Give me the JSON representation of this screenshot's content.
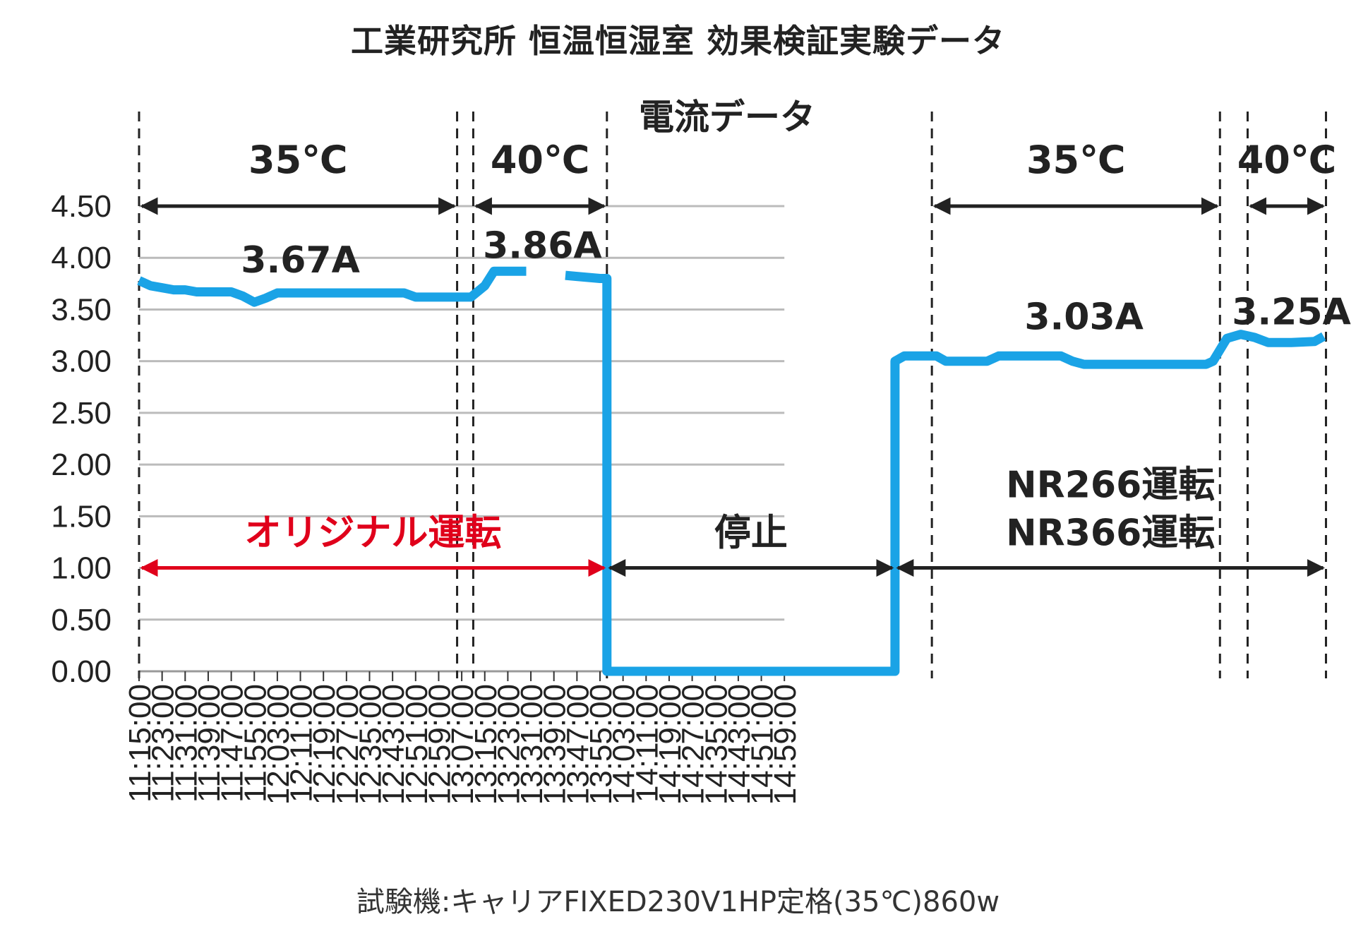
{
  "title": "工業研究所 恒温恒湿室 効果検証実験データ",
  "footer": "試験機:キャリアFIXED230V1HP定格(35℃)860w",
  "chart_data": {
    "type": "line",
    "subtitle": "電流データ",
    "x": [
      "11:15:00",
      "11:23:00",
      "11:31:00",
      "11:39:00",
      "11:47:00",
      "11:55:00",
      "12:03:00",
      "12:11:00",
      "12:19:00",
      "12:27:00",
      "12:35:00",
      "12:43:00",
      "12:51:00",
      "12:59:00",
      "13:07:00",
      "13:15:00",
      "13:23:00",
      "13:31:00",
      "13:39:00",
      "13:47:00",
      "13:55:00",
      "14:03:00",
      "14:11:00",
      "14:19:00",
      "14:27:00",
      "14:35:00",
      "14:43:00",
      "14:51:00",
      "14:59:00"
    ],
    "ylim": [
      0,
      4.5
    ],
    "yticks": [
      "0.00",
      "0.50",
      "1.00",
      "1.50",
      "2.00",
      "2.50",
      "3.00",
      "3.50",
      "4.00",
      "4.50"
    ],
    "grid": true,
    "line_color": "#1aa3e6",
    "series": [
      {
        "points": [
          [
            0,
            3.78
          ],
          [
            0.5,
            3.73
          ],
          [
            1,
            3.71
          ],
          [
            1.5,
            3.69
          ],
          [
            2,
            3.69
          ],
          [
            2.5,
            3.67
          ],
          [
            3,
            3.67
          ],
          [
            3.5,
            3.67
          ],
          [
            4,
            3.67
          ],
          [
            4.5,
            3.63
          ],
          [
            5,
            3.57
          ],
          [
            5.5,
            3.61
          ],
          [
            6,
            3.66
          ],
          [
            7,
            3.66
          ],
          [
            8,
            3.66
          ],
          [
            9,
            3.66
          ],
          [
            10,
            3.66
          ],
          [
            11,
            3.66
          ],
          [
            11.5,
            3.66
          ],
          [
            12,
            3.62
          ],
          [
            13,
            3.62
          ],
          [
            14,
            3.62
          ],
          [
            14.4,
            3.62
          ],
          [
            15,
            3.73
          ],
          [
            15.4,
            3.87
          ],
          [
            16,
            3.87
          ],
          [
            16.8,
            3.87
          ],
          null,
          [
            18.5,
            3.83
          ],
          [
            19,
            3.82
          ],
          [
            20,
            3.8
          ],
          [
            20.3,
            3.8
          ],
          [
            20.3,
            0.0
          ],
          [
            21,
            0.0
          ],
          [
            25,
            0.0
          ],
          [
            29,
            0.0
          ],
          [
            32.8,
            0.0
          ],
          [
            32.8,
            3.0
          ],
          [
            33.2,
            3.05
          ],
          [
            34,
            3.05
          ],
          [
            34.6,
            3.05
          ],
          [
            35,
            3.0
          ],
          [
            36,
            3.0
          ],
          [
            36.8,
            3.0
          ],
          [
            37.3,
            3.05
          ],
          [
            38,
            3.05
          ],
          [
            39.5,
            3.05
          ],
          [
            40,
            3.05
          ],
          [
            40.5,
            3.0
          ],
          [
            41,
            2.97
          ],
          [
            42,
            2.97
          ],
          [
            44,
            2.97
          ],
          [
            46,
            2.97
          ],
          [
            46.3,
            2.97
          ],
          [
            46.6,
            3.0
          ],
          [
            47.2,
            3.22
          ],
          [
            47.8,
            3.26
          ],
          [
            48.4,
            3.23
          ],
          [
            49,
            3.18
          ],
          [
            50,
            3.18
          ],
          [
            51,
            3.19
          ],
          [
            51.4,
            3.24
          ]
        ]
      }
    ],
    "annotations": {
      "period_vlines": [
        0,
        13.8,
        14.5,
        20.3,
        34.4,
        46.9,
        48.1,
        51.5
      ],
      "temperature_ranges": [
        {
          "label": "35℃",
          "from": 0,
          "to": 13.8
        },
        {
          "label": "40℃",
          "from": 14.5,
          "to": 20.3
        },
        {
          "label": "35℃",
          "from": 34.4,
          "to": 46.9
        },
        {
          "label": "40℃",
          "from": 48.1,
          "to": 51.5
        }
      ],
      "average_labels": [
        {
          "text": "3.67A",
          "x": 7.0,
          "y": 3.98
        },
        {
          "text": "3.86A",
          "x": 17.5,
          "y": 4.12
        },
        {
          "text": "3.03A",
          "x": 41.0,
          "y": 3.43
        },
        {
          "text": "3.25A",
          "x": 50.0,
          "y": 3.48
        }
      ],
      "mode_ranges": [
        {
          "label": "オリジナル運転",
          "from": 0,
          "to": 20.3,
          "color": "#e0001b"
        },
        {
          "label": "停止",
          "from": 20.3,
          "to": 32.8,
          "color": "#222222"
        },
        {
          "label": "NR266運転",
          "label2": "NR366運転",
          "from": 32.8,
          "to": 51.5,
          "color": "#222222"
        }
      ]
    }
  }
}
